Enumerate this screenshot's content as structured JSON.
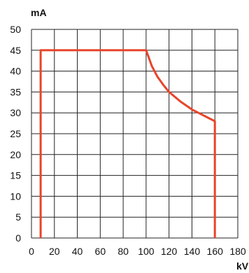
{
  "chart_data": {
    "type": "line",
    "title": "",
    "xlabel": "kV",
    "ylabel": "mA",
    "xlim": [
      0,
      180
    ],
    "ylim": [
      0,
      50
    ],
    "xticks": [
      0,
      20,
      40,
      60,
      80,
      100,
      120,
      140,
      160,
      180
    ],
    "yticks": [
      0,
      5,
      10,
      15,
      20,
      25,
      30,
      35,
      40,
      45,
      50
    ],
    "grid": true,
    "legend": "none",
    "series": [
      {
        "color": "#e8442a",
        "points": [
          [
            8,
            0
          ],
          [
            8,
            45
          ],
          [
            100,
            45
          ],
          [
            105,
            41.2
          ],
          [
            110,
            38.6
          ],
          [
            115,
            36.7
          ],
          [
            120,
            35.0
          ],
          [
            130,
            32.7
          ],
          [
            140,
            30.8
          ],
          [
            150,
            29.4
          ],
          [
            160,
            28.0
          ],
          [
            160,
            0
          ]
        ]
      }
    ]
  }
}
